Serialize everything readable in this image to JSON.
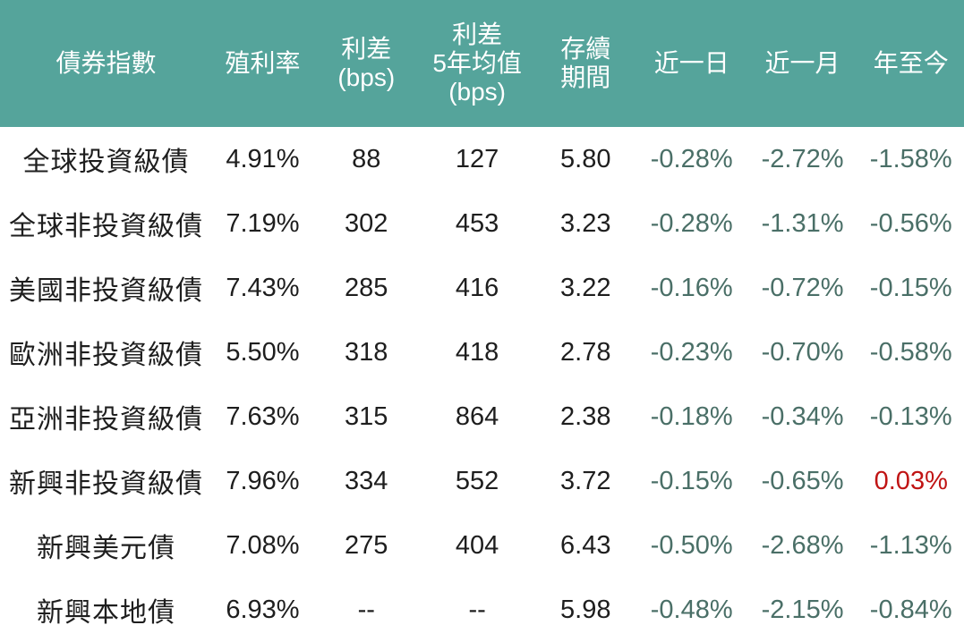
{
  "chart_data": {
    "type": "table",
    "columns": [
      {
        "key": "index",
        "label": "債券指數"
      },
      {
        "key": "yield",
        "label": "殖利率"
      },
      {
        "key": "spread",
        "label": "利差\n(bps)"
      },
      {
        "key": "spread_5y_avg",
        "label": "利差\n5年均值\n(bps)"
      },
      {
        "key": "duration",
        "label": "存續\n期間"
      },
      {
        "key": "day",
        "label": "近一日"
      },
      {
        "key": "month",
        "label": "近一月"
      },
      {
        "key": "ytd",
        "label": "年至今"
      }
    ],
    "change_columns": [
      "day",
      "month",
      "ytd"
    ],
    "rows": [
      {
        "index": "全球投資級債",
        "yield": "4.91%",
        "spread": "88",
        "spread_5y_avg": "127",
        "duration": "5.80",
        "day": "-0.28%",
        "month": "-2.72%",
        "ytd": "-1.58%"
      },
      {
        "index": "全球非投資級債",
        "yield": "7.19%",
        "spread": "302",
        "spread_5y_avg": "453",
        "duration": "3.23",
        "day": "-0.28%",
        "month": "-1.31%",
        "ytd": "-0.56%"
      },
      {
        "index": "美國非投資級債",
        "yield": "7.43%",
        "spread": "285",
        "spread_5y_avg": "416",
        "duration": "3.22",
        "day": "-0.16%",
        "month": "-0.72%",
        "ytd": "-0.15%"
      },
      {
        "index": "歐洲非投資級債",
        "yield": "5.50%",
        "spread": "318",
        "spread_5y_avg": "418",
        "duration": "2.78",
        "day": "-0.23%",
        "month": "-0.70%",
        "ytd": "-0.58%"
      },
      {
        "index": "亞洲非投資級債",
        "yield": "7.63%",
        "spread": "315",
        "spread_5y_avg": "864",
        "duration": "2.38",
        "day": "-0.18%",
        "month": "-0.34%",
        "ytd": "-0.13%"
      },
      {
        "index": "新興非投資級債",
        "yield": "7.96%",
        "spread": "334",
        "spread_5y_avg": "552",
        "duration": "3.72",
        "day": "-0.15%",
        "month": "-0.65%",
        "ytd": "0.03%"
      },
      {
        "index": "新興美元債",
        "yield": "7.08%",
        "spread": "275",
        "spread_5y_avg": "404",
        "duration": "6.43",
        "day": "-0.50%",
        "month": "-2.68%",
        "ytd": "-1.13%"
      },
      {
        "index": "新興本地債",
        "yield": "6.93%",
        "spread": "--",
        "spread_5y_avg": "--",
        "duration": "5.98",
        "day": "-0.48%",
        "month": "-2.15%",
        "ytd": "-0.84%"
      }
    ]
  },
  "colors": {
    "header_bg": "#55A49B",
    "header_text": "#FFFFFF",
    "body_text": "#1E1E1E",
    "change_negative": "#4A6F67",
    "change_positive": "#C01414"
  }
}
